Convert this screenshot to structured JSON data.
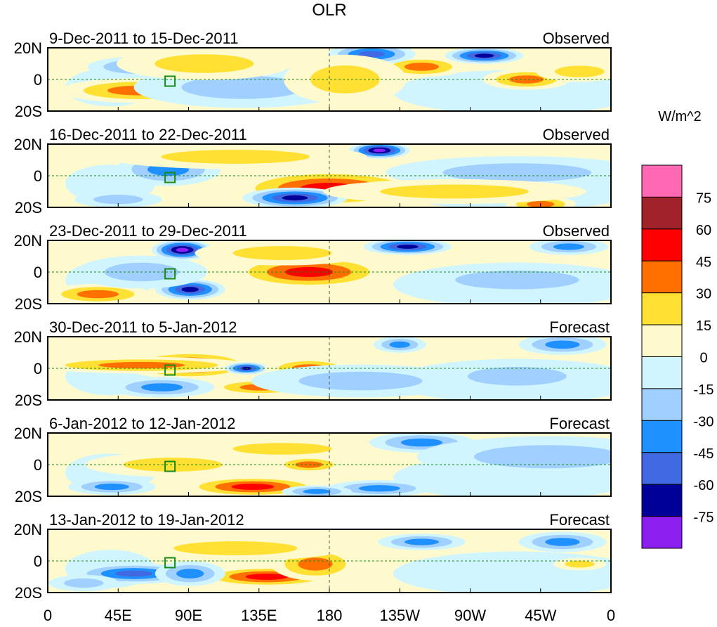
{
  "chart_data": {
    "type": "heatmap",
    "title": "OLR",
    "units": "W/m^2",
    "lon_range": [
      0,
      360
    ],
    "lat_range": [
      -20,
      20
    ],
    "x_ticks": [
      "0",
      "45E",
      "90E",
      "135E",
      "180",
      "135W",
      "90W",
      "45W",
      "0"
    ],
    "y_ticks": [
      "20N",
      "0",
      "20S"
    ],
    "levels": [
      -75,
      -60,
      -45,
      -30,
      -15,
      0,
      15,
      30,
      45,
      60,
      75
    ],
    "colors": [
      "#8a1fef",
      "#000099",
      "#4169e1",
      "#1e90ff",
      "#a0d0ff",
      "#d1f5ff",
      "#fffacd",
      "#ffe033",
      "#ff7000",
      "#ff0000",
      "#a0222a",
      "#ff69b4"
    ],
    "colorbar_labels": [
      "75",
      "60",
      "45",
      "30",
      "15",
      "0",
      "-15",
      "-30",
      "-45",
      "-60",
      "-75"
    ],
    "panels": [
      {
        "period": "9-Dec-2011 to 15-Dec-2011",
        "kind": "Observed",
        "anomalies": [
          {
            "lon": 58,
            "lat": -7,
            "w": 18,
            "h": 6,
            "v": 40
          },
          {
            "lon": 239,
            "lat": 8,
            "w": 10,
            "h": 5,
            "v": 35
          },
          {
            "lon": 306,
            "lat": 0,
            "w": 10,
            "h": 5,
            "v": 35
          },
          {
            "lon": 207,
            "lat": 16,
            "w": 10,
            "h": 5,
            "v": -50
          },
          {
            "lon": 279,
            "lat": 15,
            "w": 9,
            "h": 4,
            "v": -70
          },
          {
            "lon": 59,
            "lat": 8,
            "w": 12,
            "h": 5,
            "v": -35
          },
          {
            "lon": 125,
            "lat": -5,
            "w": 25,
            "h": 10,
            "v": -20
          },
          {
            "lon": 190,
            "lat": 0,
            "w": 14,
            "h": 12,
            "v": 20
          },
          {
            "lon": 100,
            "lat": 10,
            "w": 20,
            "h": 8,
            "v": 20
          },
          {
            "lon": 340,
            "lat": 5,
            "w": 10,
            "h": 5,
            "v": 20
          }
        ]
      },
      {
        "period": "16-Dec-2011 to 22-Dec-2011",
        "kind": "Observed",
        "anomalies": [
          {
            "lon": 180,
            "lat": -8,
            "w": 22,
            "h": 9,
            "v": 55
          },
          {
            "lon": 212,
            "lat": 16,
            "w": 7,
            "h": 4,
            "v": -80
          },
          {
            "lon": 77,
            "lat": 4,
            "w": 12,
            "h": 8,
            "v": -45
          },
          {
            "lon": 158,
            "lat": -14,
            "w": 12,
            "h": 5,
            "v": -65
          },
          {
            "lon": 315,
            "lat": -18,
            "w": 8,
            "h": 4,
            "v": 35
          },
          {
            "lon": 120,
            "lat": 12,
            "w": 30,
            "h": 6,
            "v": 20
          },
          {
            "lon": 45,
            "lat": -15,
            "w": 10,
            "h": 4,
            "v": -30
          },
          {
            "lon": 300,
            "lat": 2,
            "w": 30,
            "h": 8,
            "v": -20
          },
          {
            "lon": 260,
            "lat": -10,
            "w": 30,
            "h": 6,
            "v": 20
          }
        ]
      },
      {
        "period": "23-Dec-2011 to 29-Dec-2011",
        "kind": "Observed",
        "anomalies": [
          {
            "lon": 86,
            "lat": 14,
            "w": 7,
            "h": 5,
            "v": -80
          },
          {
            "lon": 91,
            "lat": -11,
            "w": 8,
            "h": 5,
            "v": -65
          },
          {
            "lon": 167,
            "lat": 0,
            "w": 18,
            "h": 8,
            "v": 50
          },
          {
            "lon": 230,
            "lat": 16,
            "w": 10,
            "h": 4,
            "v": -70
          },
          {
            "lon": 333,
            "lat": 16,
            "w": 9,
            "h": 4,
            "v": -40
          },
          {
            "lon": 32,
            "lat": -14,
            "w": 12,
            "h": 5,
            "v": 40
          },
          {
            "lon": 150,
            "lat": 12,
            "w": 20,
            "h": 6,
            "v": 25
          },
          {
            "lon": 60,
            "lat": 0,
            "w": 15,
            "h": 8,
            "v": -25
          },
          {
            "lon": 300,
            "lat": -5,
            "w": 25,
            "h": 8,
            "v": -20
          }
        ]
      },
      {
        "period": "30-Dec-2011 to 5-Jan-2012",
        "kind": "Forecast",
        "anomalies": [
          {
            "lon": 91,
            "lat": 2,
            "w": 15,
            "h": 7,
            "v": 55
          },
          {
            "lon": 60,
            "lat": 2,
            "w": 25,
            "h": 4,
            "v": 35
          },
          {
            "lon": 127,
            "lat": 0,
            "w": 5,
            "h": 3,
            "v": -70
          },
          {
            "lon": 167,
            "lat": 0,
            "w": 10,
            "h": 5,
            "v": 40
          },
          {
            "lon": 136,
            "lat": -12,
            "w": 12,
            "h": 4,
            "v": 40
          },
          {
            "lon": 329,
            "lat": 15,
            "w": 10,
            "h": 5,
            "v": -45
          },
          {
            "lon": 225,
            "lat": 15,
            "w": 6,
            "h": 4,
            "v": -40
          },
          {
            "lon": 73,
            "lat": -12,
            "w": 12,
            "h": 5,
            "v": -35
          },
          {
            "lon": 200,
            "lat": -8,
            "w": 25,
            "h": 8,
            "v": -20
          },
          {
            "lon": 300,
            "lat": -5,
            "w": 20,
            "h": 8,
            "v": -20
          }
        ]
      },
      {
        "period": "6-Jan-2012 to 12-Jan-2012",
        "kind": "Forecast",
        "anomalies": [
          {
            "lon": 131,
            "lat": -14,
            "w": 16,
            "h": 5,
            "v": 55
          },
          {
            "lon": 167,
            "lat": 0,
            "w": 8,
            "h": 4,
            "v": 45
          },
          {
            "lon": 212,
            "lat": -15,
            "w": 12,
            "h": 4,
            "v": -40
          },
          {
            "lon": 239,
            "lat": 14,
            "w": 12,
            "h": 5,
            "v": -35
          },
          {
            "lon": 41,
            "lat": -14,
            "w": 10,
            "h": 4,
            "v": -45
          },
          {
            "lon": 172,
            "lat": -17,
            "w": 8,
            "h": 3,
            "v": -35
          },
          {
            "lon": 80,
            "lat": 0,
            "w": 20,
            "h": 6,
            "v": 20
          },
          {
            "lon": 320,
            "lat": 5,
            "w": 30,
            "h": 10,
            "v": -20
          },
          {
            "lon": 150,
            "lat": 10,
            "w": 20,
            "h": 5,
            "v": 20
          }
        ]
      },
      {
        "period": "13-Jan-2012 to 19-Jan-2012",
        "kind": "Forecast",
        "anomalies": [
          {
            "lon": 140,
            "lat": -10,
            "w": 16,
            "h": 5,
            "v": 55
          },
          {
            "lon": 171,
            "lat": -2,
            "w": 10,
            "h": 8,
            "v": 40
          },
          {
            "lon": 55,
            "lat": -8,
            "w": 14,
            "h": 5,
            "v": -55
          },
          {
            "lon": 91,
            "lat": -8,
            "w": 8,
            "h": 6,
            "v": -40
          },
          {
            "lon": 239,
            "lat": 12,
            "w": 10,
            "h": 4,
            "v": -40
          },
          {
            "lon": 329,
            "lat": 12,
            "w": 10,
            "h": 5,
            "v": -40
          },
          {
            "lon": 23,
            "lat": -14,
            "w": 8,
            "h": 4,
            "v": -30
          },
          {
            "lon": 120,
            "lat": 8,
            "w": 25,
            "h": 6,
            "v": 25
          },
          {
            "lon": 340,
            "lat": -2,
            "w": 6,
            "h": 3,
            "v": 30
          }
        ]
      }
    ]
  }
}
